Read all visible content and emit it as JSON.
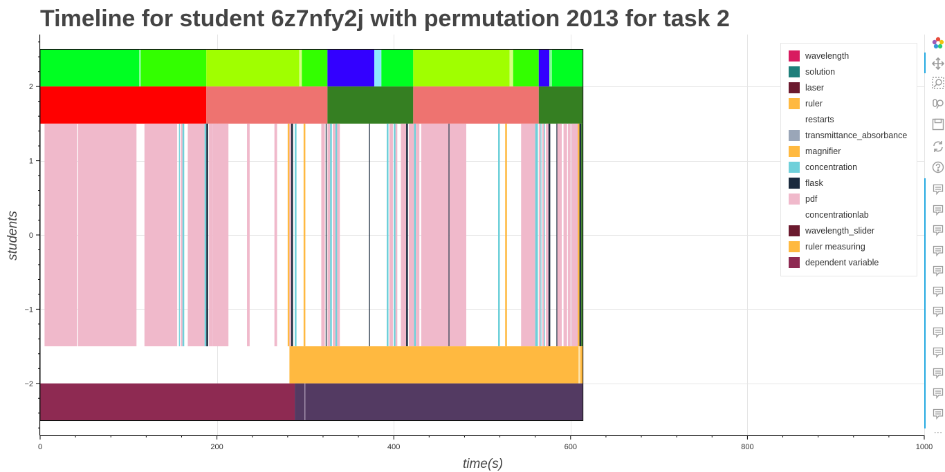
{
  "chart_data": {
    "type": "timeline",
    "title": "Timeline for student 6z7nfy2j with permutation 2013 for task 2",
    "xlabel": "time(s)",
    "ylabel": "students",
    "xlim": [
      0,
      1000
    ],
    "ylim": [
      -2.7,
      2.7
    ],
    "x_ticks": [
      0,
      200,
      400,
      600,
      800,
      1000
    ],
    "y_ticks": [
      2,
      1,
      0,
      -1,
      -2
    ],
    "x_tick_labels": [
      "0",
      "200",
      "400",
      "600",
      "800",
      "1000"
    ],
    "y_tick_labels": [
      "2",
      "1",
      "0",
      "−1",
      "−2"
    ],
    "grid": true,
    "legend_position": "top-right",
    "legend": [
      {
        "label": "wavelength",
        "color": "#d81b60"
      },
      {
        "label": "solution",
        "color": "#1e7f7a"
      },
      {
        "label": "laser",
        "color": "#6b1a2e"
      },
      {
        "label": "ruler",
        "color": "#ffb940"
      },
      {
        "label": "restarts",
        "color": "#ffffff"
      },
      {
        "label": "transmittance_absorbance",
        "color": "#9aa6b8"
      },
      {
        "label": "magnifier",
        "color": "#ffb940"
      },
      {
        "label": "concentration",
        "color": "#6fd0da"
      },
      {
        "label": "flask",
        "color": "#1b2b3e"
      },
      {
        "label": "pdf",
        "color": "#f0b9cb"
      },
      {
        "label": "concentrationlab",
        "color": "#ffffff"
      },
      {
        "label": "wavelength_slider",
        "color": "#6b1a2e"
      },
      {
        "label": "ruler measuring",
        "color": "#ffb940"
      },
      {
        "label": "dependent variable",
        "color": "#8e2a52"
      }
    ],
    "rows": [
      {
        "name": "row_top",
        "y": [
          2,
          2.5
        ],
        "segments": [
          {
            "start": 0,
            "end": 112,
            "color": "#00ff22"
          },
          {
            "start": 112,
            "end": 114,
            "color": "#7dff90"
          },
          {
            "start": 114,
            "end": 188,
            "color": "#33ff00"
          },
          {
            "start": 188,
            "end": 293,
            "color": "#a0ff00"
          },
          {
            "start": 293,
            "end": 296,
            "color": "#d4ff80"
          },
          {
            "start": 296,
            "end": 325,
            "color": "#33ff00"
          },
          {
            "start": 325,
            "end": 378,
            "color": "#3300ff"
          },
          {
            "start": 378,
            "end": 386,
            "color": "#8fe8ff"
          },
          {
            "start": 386,
            "end": 422,
            "color": "#00ff22"
          },
          {
            "start": 422,
            "end": 531,
            "color": "#a0ff00"
          },
          {
            "start": 531,
            "end": 535,
            "color": "#d4ff80"
          },
          {
            "start": 535,
            "end": 564,
            "color": "#33ff00"
          },
          {
            "start": 564,
            "end": 576,
            "color": "#3300ff"
          },
          {
            "start": 576,
            "end": 579,
            "color": "#7dff90"
          },
          {
            "start": 579,
            "end": 614,
            "color": "#00ff22"
          }
        ]
      },
      {
        "name": "row_second",
        "y": [
          1.5,
          2
        ],
        "segments": [
          {
            "start": 0,
            "end": 188,
            "color": "#ff0000"
          },
          {
            "start": 188,
            "end": 325,
            "color": "#ee7370"
          },
          {
            "start": 325,
            "end": 422,
            "color": "#357f22"
          },
          {
            "start": 422,
            "end": 564,
            "color": "#ee7370"
          },
          {
            "start": 564,
            "end": 614,
            "color": "#357f22"
          }
        ]
      },
      {
        "name": "row_middle",
        "y": [
          -1.5,
          1.5
        ],
        "segments": [
          {
            "start": 5,
            "end": 42,
            "color": "#f0b9cb"
          },
          {
            "start": 43,
            "end": 109,
            "color": "#f0b9cb"
          },
          {
            "start": 118,
            "end": 155,
            "color": "#f0b9cb"
          },
          {
            "start": 157,
            "end": 158,
            "color": "#6fd0da"
          },
          {
            "start": 159,
            "end": 161,
            "color": "#f0b9cb"
          },
          {
            "start": 161,
            "end": 163,
            "color": "#6fd0da"
          },
          {
            "start": 167,
            "end": 186,
            "color": "#f0b9cb"
          },
          {
            "start": 186,
            "end": 188,
            "color": "#6fd0da"
          },
          {
            "start": 188,
            "end": 190,
            "color": "#1b2b3e"
          },
          {
            "start": 191,
            "end": 195,
            "color": "#f0b9cb"
          },
          {
            "start": 195,
            "end": 213,
            "color": "#f0b9cb"
          },
          {
            "start": 234,
            "end": 237,
            "color": "#f0b9cb"
          },
          {
            "start": 265,
            "end": 268,
            "color": "#f0b9cb"
          },
          {
            "start": 280,
            "end": 282,
            "color": "#ffb940"
          },
          {
            "start": 282,
            "end": 284,
            "color": "#f0b9cb"
          },
          {
            "start": 284,
            "end": 286,
            "color": "#1b2b3e"
          },
          {
            "start": 288,
            "end": 290,
            "color": "#6fd0da"
          },
          {
            "start": 298,
            "end": 300,
            "color": "#ffb940"
          },
          {
            "start": 318,
            "end": 322,
            "color": "#f0b9cb"
          },
          {
            "start": 323,
            "end": 324,
            "color": "#1b2b3e"
          },
          {
            "start": 325,
            "end": 328,
            "color": "#f0b9cb"
          },
          {
            "start": 328,
            "end": 330,
            "color": "#6fd0da"
          },
          {
            "start": 331,
            "end": 334,
            "color": "#f0b9cb"
          },
          {
            "start": 334,
            "end": 336,
            "color": "#6fd0da"
          },
          {
            "start": 336,
            "end": 339,
            "color": "#f0b9cb"
          },
          {
            "start": 372,
            "end": 373,
            "color": "#1b2b3e"
          },
          {
            "start": 392,
            "end": 394,
            "color": "#6fd0da"
          },
          {
            "start": 395,
            "end": 399,
            "color": "#f0b9cb"
          },
          {
            "start": 400,
            "end": 402,
            "color": "#6fd0da"
          },
          {
            "start": 402,
            "end": 404,
            "color": "#f0b9cb"
          },
          {
            "start": 408,
            "end": 414,
            "color": "#f0b9cb"
          },
          {
            "start": 414,
            "end": 416,
            "color": "#1b2b3e"
          },
          {
            "start": 417,
            "end": 423,
            "color": "#f0b9cb"
          },
          {
            "start": 423,
            "end": 425,
            "color": "#6fd0da"
          },
          {
            "start": 425,
            "end": 429,
            "color": "#f0b9cb"
          },
          {
            "start": 431,
            "end": 462,
            "color": "#f0b9cb"
          },
          {
            "start": 462,
            "end": 463,
            "color": "#1b2b3e"
          },
          {
            "start": 463,
            "end": 482,
            "color": "#f0b9cb"
          },
          {
            "start": 518,
            "end": 520,
            "color": "#6fd0da"
          },
          {
            "start": 526,
            "end": 528,
            "color": "#ffb940"
          },
          {
            "start": 544,
            "end": 560,
            "color": "#f0b9cb"
          },
          {
            "start": 560,
            "end": 563,
            "color": "#6fd0da"
          },
          {
            "start": 564,
            "end": 566,
            "color": "#f0b9cb"
          },
          {
            "start": 566,
            "end": 567,
            "color": "#6fd0da"
          },
          {
            "start": 568,
            "end": 570,
            "color": "#f0b9cb"
          },
          {
            "start": 570,
            "end": 571,
            "color": "#6fd0da"
          },
          {
            "start": 572,
            "end": 575,
            "color": "#f0b9cb"
          },
          {
            "start": 575,
            "end": 577,
            "color": "#1b2b3e"
          },
          {
            "start": 584,
            "end": 585,
            "color": "#1b2b3e"
          },
          {
            "start": 585,
            "end": 590,
            "color": "#f0b9cb"
          },
          {
            "start": 592,
            "end": 596,
            "color": "#f0b9cb"
          },
          {
            "start": 597,
            "end": 600,
            "color": "#f0b9cb"
          },
          {
            "start": 601,
            "end": 608,
            "color": "#f0b9cb"
          },
          {
            "start": 608,
            "end": 610,
            "color": "#ffb940"
          },
          {
            "start": 610,
            "end": 612,
            "color": "#1b2b3e"
          },
          {
            "start": 612,
            "end": 614,
            "color": "#357f22"
          }
        ]
      },
      {
        "name": "row_fourth",
        "y": [
          -2,
          -1.5
        ],
        "segments": [
          {
            "start": 282,
            "end": 609,
            "color": "#ffb940"
          },
          {
            "start": 609,
            "end": 611,
            "color": "#ffe4a8"
          },
          {
            "start": 611,
            "end": 614,
            "color": "#ffb940"
          }
        ]
      },
      {
        "name": "row_bottom",
        "y": [
          -2.5,
          -2
        ],
        "segments": [
          {
            "start": 0,
            "end": 288,
            "color": "#8e2a52"
          },
          {
            "start": 288,
            "end": 299,
            "color": "#533a62"
          },
          {
            "start": 299,
            "end": 300,
            "color": "#a08aa8"
          },
          {
            "start": 300,
            "end": 614,
            "color": "#533a62"
          }
        ]
      }
    ]
  },
  "toolbar": {
    "tools": [
      {
        "icon": "bokeh-logo-icon"
      },
      {
        "icon": "pan-icon"
      },
      {
        "icon": "box-zoom-icon"
      },
      {
        "icon": "wheel-zoom-icon"
      },
      {
        "icon": "save-icon"
      },
      {
        "icon": "reset-icon"
      },
      {
        "icon": "help-icon"
      },
      {
        "icon": "hover-icon",
        "count": 12
      },
      {
        "icon": "more-icon"
      }
    ]
  }
}
